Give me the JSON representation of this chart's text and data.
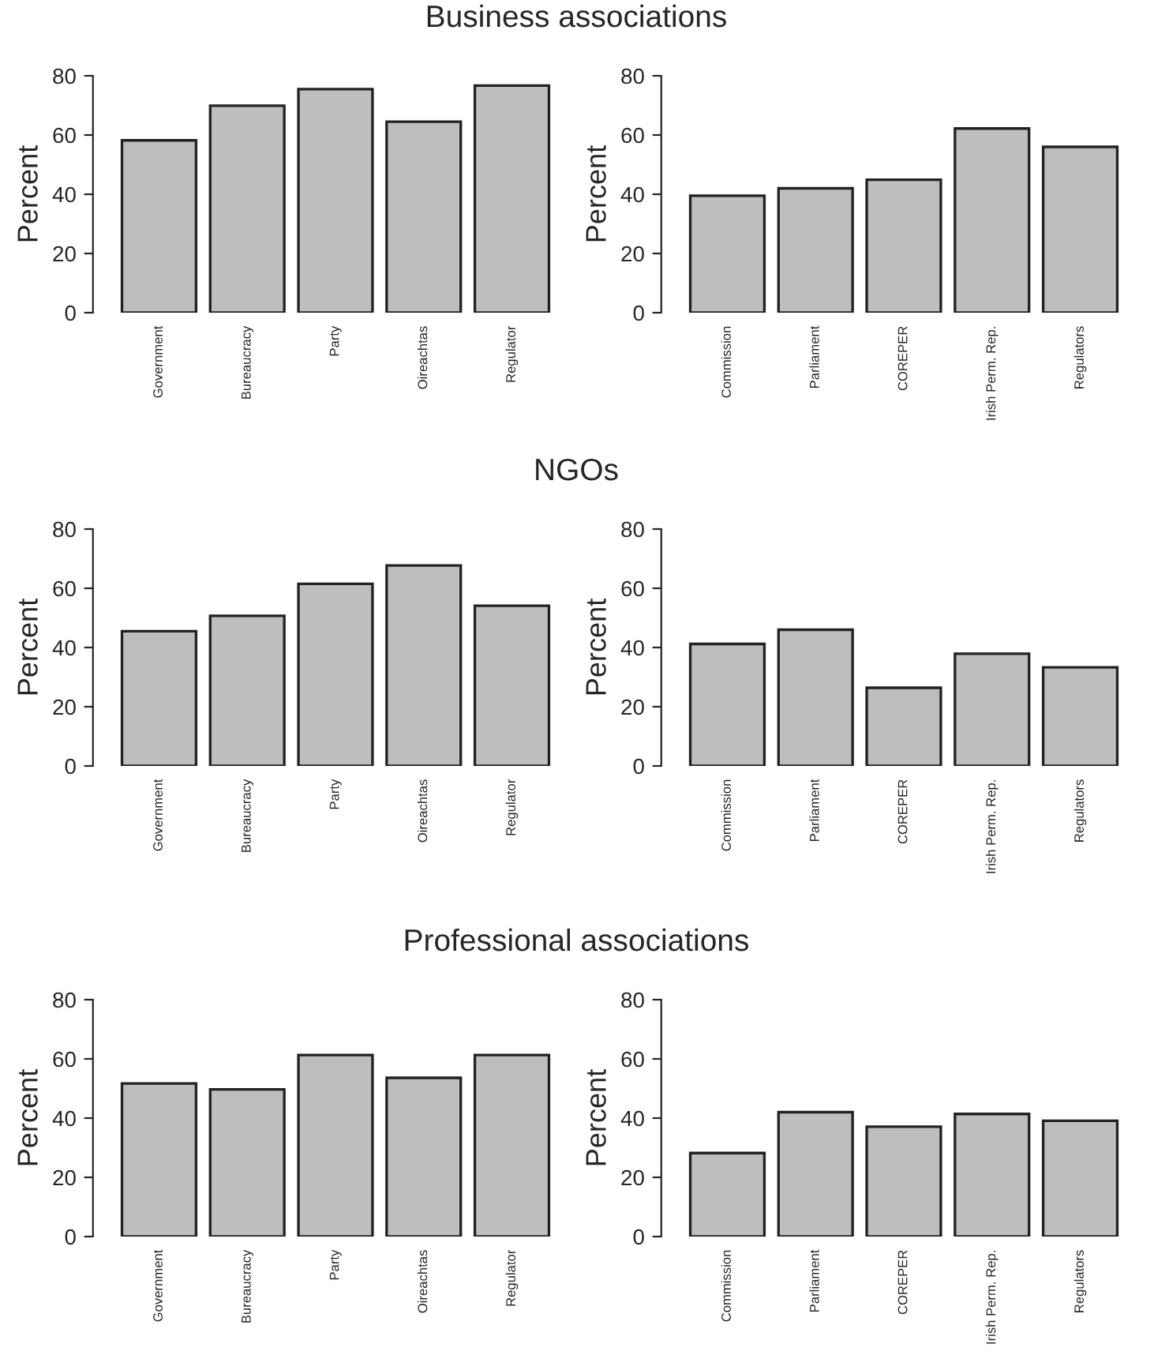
{
  "chart_data": [
    {
      "type": "bar",
      "title": "Business associations",
      "ylabel": "Percent",
      "categories": [
        "Government",
        "Bureaucracy",
        "Party",
        "Oireachtas",
        "Regulator"
      ],
      "values": [
        58.2,
        69.9,
        75.5,
        64.5,
        76.7
      ],
      "color": "#bebebe",
      "ylim": [
        0,
        80
      ],
      "yticks": [
        0,
        20,
        40,
        60,
        80
      ],
      "grid": false
    },
    {
      "type": "bar",
      "ylabel": "Percent",
      "categories": [
        "Commission",
        "Parliament",
        "COREPER",
        "Irish Perm. Rep.",
        "Regulators"
      ],
      "values": [
        39.5,
        42.0,
        44.9,
        62.2,
        56.0
      ],
      "color": "#bebebe",
      "ylim": [
        0,
        80
      ],
      "yticks": [
        0,
        20,
        40,
        60,
        80
      ],
      "grid": false
    },
    {
      "type": "bar",
      "title": "NGOs",
      "ylabel": "Percent",
      "categories": [
        "Government",
        "Bureaucracy",
        "Party",
        "Oireachtas",
        "Regulator"
      ],
      "values": [
        45.5,
        50.7,
        61.5,
        67.7,
        54.1
      ],
      "color": "#bebebe",
      "ylim": [
        0,
        80
      ],
      "yticks": [
        0,
        20,
        40,
        60,
        80
      ],
      "grid": false
    },
    {
      "type": "bar",
      "ylabel": "Percent",
      "categories": [
        "Commission",
        "Parliament",
        "COREPER",
        "Irish Perm. Rep.",
        "Regulators"
      ],
      "values": [
        41.2,
        46.0,
        26.4,
        37.9,
        33.3
      ],
      "color": "#bebebe",
      "ylim": [
        0,
        80
      ],
      "yticks": [
        0,
        20,
        40,
        60,
        80
      ],
      "grid": false
    },
    {
      "type": "bar",
      "title": "Professional associations",
      "ylabel": "Percent",
      "categories": [
        "Government",
        "Bureaucracy",
        "Party",
        "Oireachtas",
        "Regulator"
      ],
      "values": [
        51.7,
        49.7,
        61.3,
        53.6,
        61.3
      ],
      "color": "#bebebe",
      "ylim": [
        0,
        80
      ],
      "yticks": [
        0,
        20,
        40,
        60,
        80
      ],
      "grid": false
    },
    {
      "type": "bar",
      "ylabel": "Percent",
      "categories": [
        "Commission",
        "Parliament",
        "COREPER",
        "Irish Perm. Rep.",
        "Regulators"
      ],
      "values": [
        28.2,
        42.0,
        37.1,
        41.4,
        39.1
      ],
      "color": "#bebebe",
      "ylim": [
        0,
        80
      ],
      "yticks": [
        0,
        20,
        40,
        60,
        80
      ],
      "grid": false
    }
  ]
}
